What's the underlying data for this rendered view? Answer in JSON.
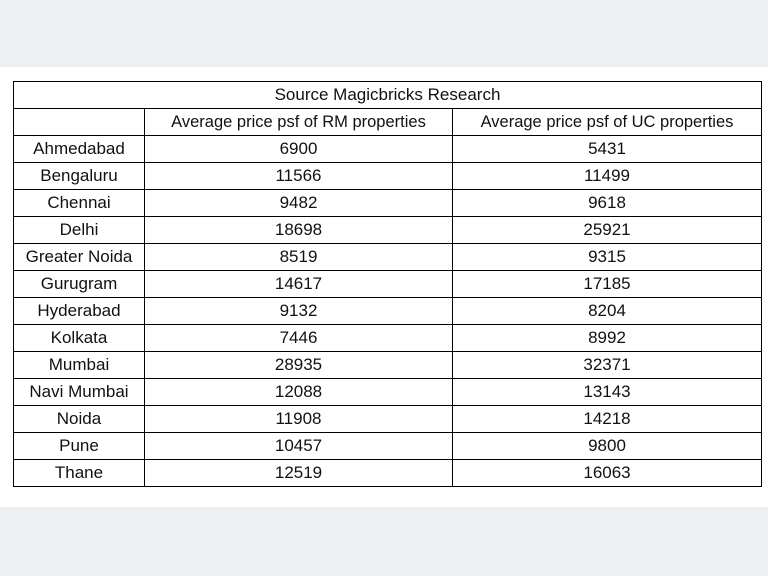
{
  "chart_data": {
    "type": "table",
    "title": "Source Magicbricks Research",
    "columns": [
      "",
      "Average price psf of RM properties",
      "Average price psf of UC  properties"
    ],
    "rows": [
      [
        "Ahmedabad",
        "6900",
        "5431"
      ],
      [
        "Bengaluru",
        "11566",
        "11499"
      ],
      [
        "Chennai",
        "9482",
        "9618"
      ],
      [
        "Delhi",
        "18698",
        "25921"
      ],
      [
        "Greater Noida",
        "8519",
        "9315"
      ],
      [
        "Gurugram",
        "14617",
        "17185"
      ],
      [
        "Hyderabad",
        "9132",
        "8204"
      ],
      [
        "Kolkata",
        "7446",
        "8992"
      ],
      [
        "Mumbai",
        "28935",
        "32371"
      ],
      [
        "Navi Mumbai",
        "12088",
        "13143"
      ],
      [
        "Noida",
        "11908",
        "14218"
      ],
      [
        "Pune",
        "10457",
        "9800"
      ],
      [
        "Thane",
        "12519",
        "16063"
      ]
    ]
  }
}
